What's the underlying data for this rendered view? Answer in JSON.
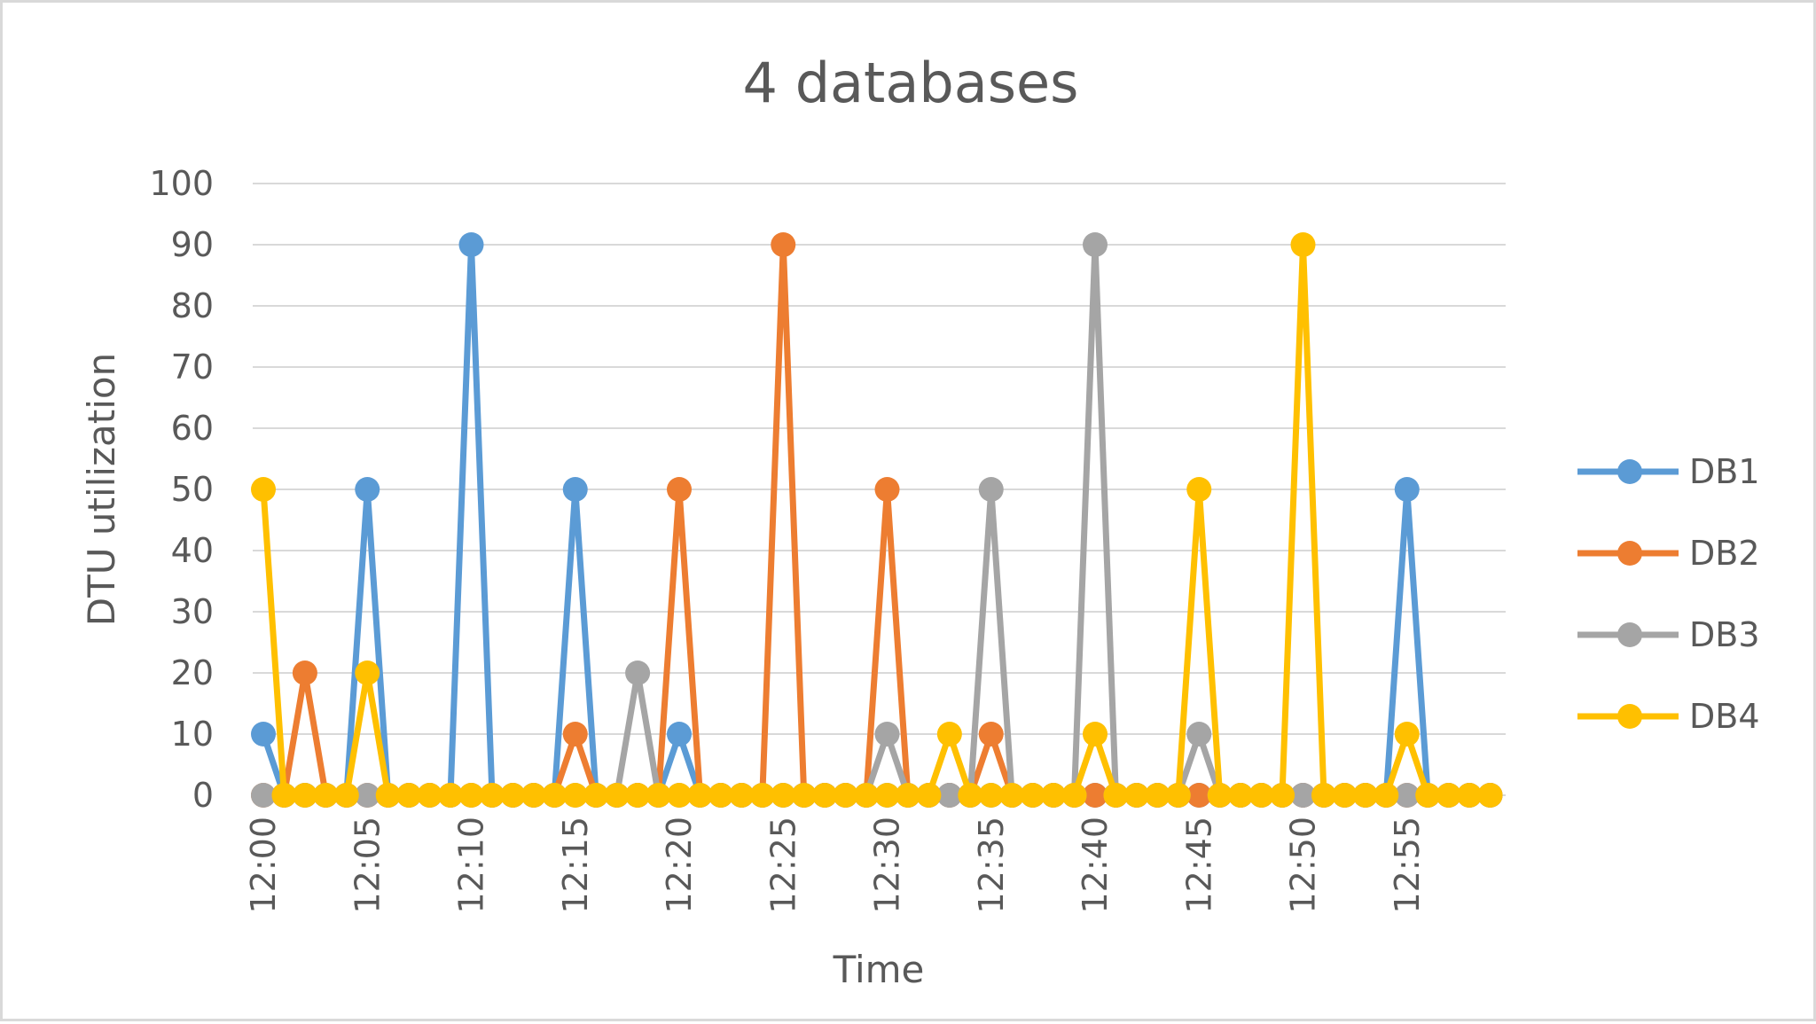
{
  "chart_data": {
    "type": "line",
    "title": "4 databases",
    "xlabel": "Time",
    "ylabel": "DTU utilization",
    "ylim": [
      0,
      100
    ],
    "yticks": [
      0,
      10,
      20,
      30,
      40,
      50,
      60,
      70,
      80,
      90,
      100
    ],
    "xticks": [
      "12:00",
      "12:05",
      "12:10",
      "12:15",
      "12:20",
      "12:25",
      "12:30",
      "12:35",
      "12:40",
      "12:45",
      "12:50",
      "12:55"
    ],
    "x": [
      "12:00",
      "12:01",
      "12:02",
      "12:03",
      "12:04",
      "12:05",
      "12:06",
      "12:07",
      "12:08",
      "12:09",
      "12:10",
      "12:11",
      "12:12",
      "12:13",
      "12:14",
      "12:15",
      "12:16",
      "12:17",
      "12:18",
      "12:19",
      "12:20",
      "12:21",
      "12:22",
      "12:23",
      "12:24",
      "12:25",
      "12:26",
      "12:27",
      "12:28",
      "12:29",
      "12:30",
      "12:31",
      "12:32",
      "12:33",
      "12:34",
      "12:35",
      "12:36",
      "12:37",
      "12:38",
      "12:39",
      "12:40",
      "12:41",
      "12:42",
      "12:43",
      "12:44",
      "12:45",
      "12:46",
      "12:47",
      "12:48",
      "12:49",
      "12:50",
      "12:51",
      "12:52",
      "12:53",
      "12:54",
      "12:55",
      "12:56",
      "12:57",
      "12:58",
      "12:59"
    ],
    "grid": true,
    "legend_position": "right",
    "series": [
      {
        "name": "DB1",
        "color": "#5b9bd5",
        "values": [
          10,
          0,
          0,
          0,
          0,
          50,
          0,
          0,
          0,
          0,
          90,
          0,
          0,
          0,
          0,
          50,
          0,
          0,
          0,
          0,
          10,
          0,
          0,
          0,
          0,
          0,
          0,
          0,
          0,
          0,
          0,
          0,
          0,
          0,
          0,
          0,
          0,
          0,
          0,
          0,
          0,
          0,
          0,
          0,
          0,
          0,
          0,
          0,
          0,
          0,
          0,
          0,
          0,
          0,
          0,
          50,
          0,
          0,
          0,
          0
        ]
      },
      {
        "name": "DB2",
        "color": "#ed7d31",
        "values": [
          0,
          0,
          20,
          0,
          0,
          0,
          0,
          0,
          0,
          0,
          0,
          0,
          0,
          0,
          0,
          10,
          0,
          0,
          0,
          0,
          50,
          0,
          0,
          0,
          0,
          90,
          0,
          0,
          0,
          0,
          50,
          0,
          0,
          0,
          0,
          10,
          0,
          0,
          0,
          0,
          0,
          0,
          0,
          0,
          0,
          0,
          0,
          0,
          0,
          0,
          0,
          0,
          0,
          0,
          0,
          0,
          0,
          0,
          0,
          0
        ]
      },
      {
        "name": "DB3",
        "color": "#a5a5a5",
        "values": [
          0,
          0,
          0,
          0,
          0,
          0,
          0,
          0,
          0,
          0,
          0,
          0,
          0,
          0,
          0,
          0,
          0,
          0,
          20,
          0,
          0,
          0,
          0,
          0,
          0,
          0,
          0,
          0,
          0,
          0,
          10,
          0,
          0,
          0,
          0,
          50,
          0,
          0,
          0,
          0,
          90,
          0,
          0,
          0,
          0,
          10,
          0,
          0,
          0,
          0,
          0,
          0,
          0,
          0,
          0,
          0,
          0,
          0,
          0,
          0
        ]
      },
      {
        "name": "DB4",
        "color": "#ffc000",
        "values": [
          50,
          0,
          0,
          0,
          0,
          20,
          0,
          0,
          0,
          0,
          0,
          0,
          0,
          0,
          0,
          0,
          0,
          0,
          0,
          0,
          0,
          0,
          0,
          0,
          0,
          0,
          0,
          0,
          0,
          0,
          0,
          0,
          0,
          10,
          0,
          0,
          0,
          0,
          0,
          0,
          10,
          0,
          0,
          0,
          0,
          50,
          0,
          0,
          0,
          0,
          90,
          0,
          0,
          0,
          0,
          10,
          0,
          0,
          0,
          0
        ]
      }
    ]
  }
}
